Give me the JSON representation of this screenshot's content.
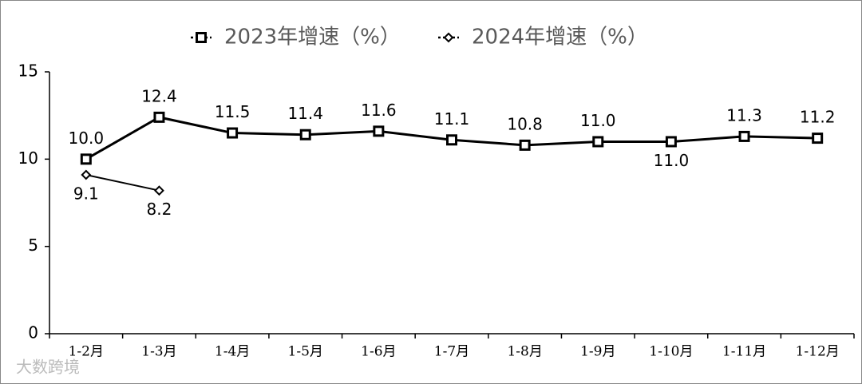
{
  "chart_data": {
    "type": "line",
    "categories": [
      "1-2月",
      "1-3月",
      "1-4月",
      "1-5月",
      "1-6月",
      "1-7月",
      "1-8月",
      "1-9月",
      "1-10月",
      "1-11月",
      "1-12月"
    ],
    "series": [
      {
        "name": "2023年增速（%）",
        "color": "#000000",
        "marker": "square",
        "values": [
          10.0,
          12.4,
          11.5,
          11.4,
          11.6,
          11.1,
          10.8,
          11.0,
          11.0,
          11.3,
          11.2
        ],
        "value_labels": [
          "10.0",
          "12.4",
          "11.5",
          "11.4",
          "11.6",
          "11.1",
          "10.8",
          "11.0",
          "11.0",
          "11.3",
          "11.2"
        ]
      },
      {
        "name": "2024年增速（%）",
        "color": "#000000",
        "marker": "diamond",
        "values": [
          9.1,
          8.2,
          null,
          null,
          null,
          null,
          null,
          null,
          null,
          null,
          null
        ],
        "value_labels": [
          "9.1",
          "8.2",
          null,
          null,
          null,
          null,
          null,
          null,
          null,
          null,
          null
        ]
      }
    ],
    "ylim": [
      0,
      15
    ],
    "yticks": [
      0,
      5,
      10,
      15
    ],
    "grid": false,
    "legend": "top",
    "watermark": "大数跨境"
  }
}
